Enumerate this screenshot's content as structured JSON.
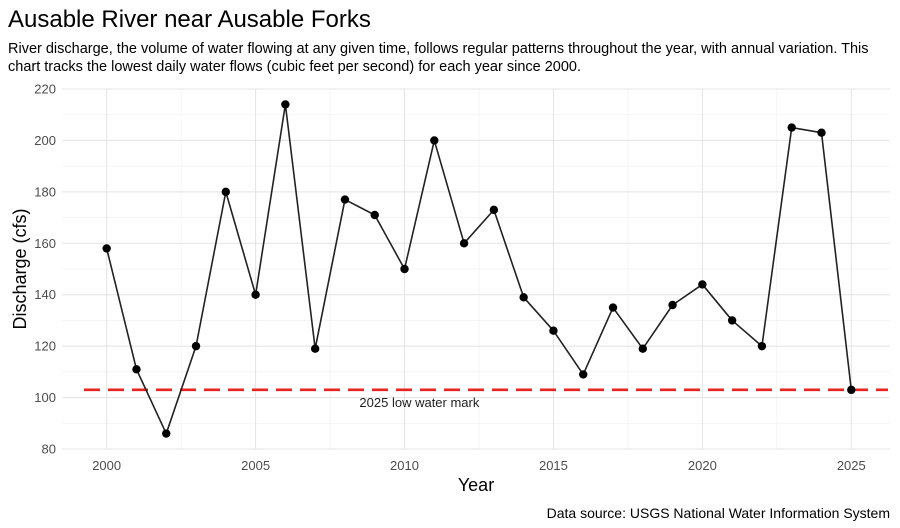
{
  "chart_data": {
    "type": "line",
    "title": "Ausable River near Ausable Forks",
    "subtitle": "River discharge, the volume of water flowing at any given time, follows regular patterns throughout the year, with annual variation. This chart tracks the lowest daily water flows (cubic feet per second) for each year since 2000.",
    "caption": "Data source: USGS National Water Information System",
    "xlabel": "Year",
    "ylabel": "Discharge (cfs)",
    "xlim": [
      1998.5,
      2026.3
    ],
    "ylim": [
      80,
      220
    ],
    "x_ticks": [
      2000,
      2005,
      2010,
      2015,
      2020,
      2025
    ],
    "y_ticks": [
      80,
      100,
      120,
      140,
      160,
      180,
      200,
      220
    ],
    "grid": true,
    "x": [
      2000,
      2001,
      2002,
      2003,
      2004,
      2005,
      2006,
      2007,
      2008,
      2009,
      2010,
      2011,
      2012,
      2013,
      2014,
      2015,
      2016,
      2017,
      2018,
      2019,
      2020,
      2021,
      2022,
      2023,
      2024,
      2025
    ],
    "values": [
      158,
      111,
      86,
      120,
      180,
      140,
      214,
      119,
      177,
      171,
      150,
      200,
      160,
      173,
      139,
      126,
      109,
      135,
      119,
      136,
      144,
      130,
      120,
      205,
      203,
      103
    ],
    "reference_line": {
      "value": 103,
      "label": "2025 low water mark",
      "color": "#e8231f"
    },
    "line_color": "#222222",
    "point_color": "#000000"
  }
}
